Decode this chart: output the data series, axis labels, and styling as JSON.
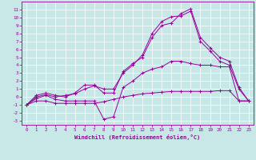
{
  "xlabel": "Windchill (Refroidissement éolien,°C)",
  "background_color": "#c8e8e8",
  "grid_color": "#ffffff",
  "line_color": "#990099",
  "x_values": [
    0,
    1,
    2,
    3,
    4,
    5,
    6,
    7,
    8,
    9,
    10,
    11,
    12,
    13,
    14,
    15,
    16,
    17,
    18,
    19,
    20,
    21,
    22,
    23
  ],
  "line1_y": [
    -1,
    -0.5,
    -0.5,
    -0.8,
    -0.8,
    -0.8,
    -0.8,
    -0.8,
    -0.6,
    -0.3,
    0.0,
    0.2,
    0.4,
    0.5,
    0.6,
    0.7,
    0.7,
    0.7,
    0.7,
    0.7,
    0.8,
    0.8,
    -0.5,
    -0.5
  ],
  "line2_y": [
    -1,
    -0.2,
    0.2,
    -0.3,
    -0.5,
    -0.5,
    -0.5,
    -0.5,
    -2.8,
    -2.5,
    1.2,
    2.0,
    3.0,
    3.5,
    3.8,
    4.5,
    4.5,
    4.2,
    4.0,
    4.0,
    3.8,
    3.8,
    -0.5,
    -0.5
  ],
  "line3_y": [
    -1,
    0.2,
    0.5,
    0.2,
    0.0,
    0.5,
    1.5,
    1.5,
    0.5,
    0.5,
    3.2,
    4.2,
    5.0,
    7.5,
    9.0,
    9.3,
    10.5,
    11.1,
    7.5,
    6.2,
    5.0,
    4.5,
    1.2,
    -0.5
  ],
  "line4_y": [
    -1,
    0.0,
    0.3,
    0.0,
    0.2,
    0.4,
    1.0,
    1.4,
    1.0,
    1.0,
    3.0,
    4.0,
    5.3,
    8.0,
    9.5,
    10.1,
    10.2,
    10.8,
    7.0,
    5.8,
    4.5,
    4.0,
    1.0,
    -0.5
  ],
  "ylim": [
    -3.5,
    12
  ],
  "xlim": [
    -0.5,
    23.5
  ],
  "yticks": [
    11,
    10,
    9,
    8,
    7,
    6,
    5,
    4,
    3,
    2,
    1,
    0,
    -1,
    -2,
    -3
  ],
  "xticks": [
    0,
    1,
    2,
    3,
    4,
    5,
    6,
    7,
    8,
    9,
    10,
    11,
    12,
    13,
    14,
    15,
    16,
    17,
    18,
    19,
    20,
    21,
    22,
    23
  ]
}
